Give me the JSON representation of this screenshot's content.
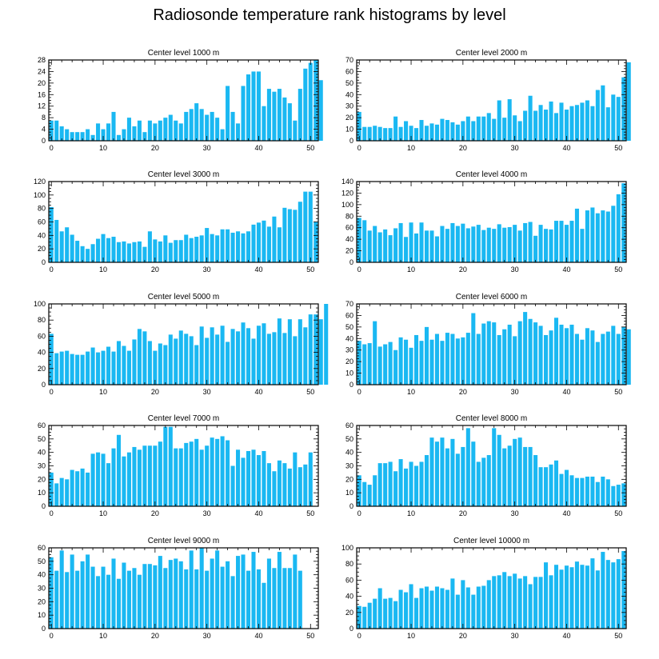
{
  "page_title": "Radiosonde temperature rank histograms by level",
  "bar_color": "#1ab8f2",
  "chart_data": [
    {
      "type": "bar",
      "title": "Center level 1000 m",
      "ylim": [
        0,
        28
      ],
      "yticks": [
        0,
        4,
        8,
        12,
        16,
        20,
        24,
        28
      ],
      "xlim": [
        -0.5,
        51.5
      ],
      "xticks": [
        0,
        10,
        20,
        30,
        40,
        50
      ],
      "values": [
        7,
        7,
        5,
        4,
        3,
        3,
        3,
        4,
        2,
        6,
        4,
        6,
        10,
        2,
        4,
        8,
        5,
        7,
        3,
        7,
        6,
        7,
        8,
        9,
        7,
        6,
        10,
        11,
        13,
        11,
        9,
        10,
        8,
        4,
        19,
        10,
        6,
        19,
        23,
        24,
        24,
        12,
        18,
        17,
        18,
        15,
        13,
        7,
        18,
        25,
        27,
        28,
        21
      ]
    },
    {
      "type": "bar",
      "title": "Center level 2000 m",
      "ylim": [
        0,
        70
      ],
      "yticks": [
        0,
        10,
        20,
        30,
        40,
        50,
        60,
        70
      ],
      "xlim": [
        -0.5,
        51.5
      ],
      "xticks": [
        0,
        10,
        20,
        30,
        40,
        50
      ],
      "values": [
        25,
        12,
        12,
        13,
        12,
        11,
        11,
        21,
        12,
        17,
        13,
        11,
        18,
        13,
        15,
        14,
        19,
        18,
        16,
        14,
        17,
        21,
        17,
        21,
        21,
        24,
        19,
        35,
        20,
        36,
        22,
        17,
        26,
        39,
        26,
        31,
        27,
        34,
        24,
        33,
        27,
        30,
        31,
        33,
        35,
        30,
        44,
        48,
        29,
        40,
        38,
        55,
        68
      ]
    },
    {
      "type": "bar",
      "title": "Center level 3000 m",
      "ylim": [
        0,
        120
      ],
      "yticks": [
        0,
        20,
        40,
        60,
        80,
        100,
        120
      ],
      "xlim": [
        -0.5,
        51.5
      ],
      "xticks": [
        0,
        10,
        20,
        30,
        40,
        50
      ],
      "values": [
        82,
        63,
        46,
        52,
        41,
        32,
        24,
        20,
        27,
        35,
        42,
        36,
        38,
        30,
        31,
        28,
        30,
        31,
        23,
        46,
        34,
        31,
        40,
        29,
        33,
        33,
        41,
        36,
        38,
        40,
        51,
        42,
        40,
        49,
        49,
        44,
        46,
        43,
        46,
        56,
        59,
        62,
        53,
        68,
        52,
        81,
        79,
        78,
        90,
        105,
        105,
        60
      ]
    },
    {
      "type": "bar",
      "title": "Center level 4000 m",
      "ylim": [
        0,
        140
      ],
      "yticks": [
        0,
        20,
        40,
        60,
        80,
        100,
        120,
        140
      ],
      "xlim": [
        -0.5,
        51.5
      ],
      "xticks": [
        0,
        10,
        20,
        30,
        40,
        50
      ],
      "values": [
        77,
        73,
        55,
        63,
        52,
        57,
        47,
        59,
        68,
        44,
        69,
        50,
        69,
        55,
        55,
        45,
        63,
        58,
        68,
        63,
        67,
        59,
        62,
        65,
        56,
        60,
        58,
        66,
        60,
        61,
        65,
        55,
        68,
        70,
        46,
        65,
        58,
        57,
        72,
        72,
        65,
        72,
        93,
        58,
        90,
        95,
        85,
        90,
        88,
        98,
        118,
        137
      ]
    },
    {
      "type": "bar",
      "title": "Center level 5000 m",
      "ylim": [
        0,
        100
      ],
      "yticks": [
        0,
        20,
        40,
        60,
        80,
        100
      ],
      "xlim": [
        -0.5,
        51.5
      ],
      "xticks": [
        0,
        10,
        20,
        30,
        40,
        50
      ],
      "values": [
        63,
        39,
        41,
        42,
        38,
        37,
        37,
        41,
        46,
        40,
        42,
        47,
        41,
        54,
        48,
        42,
        56,
        69,
        66,
        54,
        42,
        51,
        49,
        62,
        57,
        67,
        63,
        60,
        49,
        72,
        58,
        71,
        62,
        73,
        53,
        69,
        66,
        77,
        70,
        57,
        73,
        76,
        63,
        65,
        82,
        64,
        81,
        60,
        81,
        71,
        87,
        87,
        81,
        100
      ]
    },
    {
      "type": "bar",
      "title": "Center level 6000 m",
      "ylim": [
        0,
        70
      ],
      "yticks": [
        0,
        10,
        20,
        30,
        40,
        50,
        60,
        70
      ],
      "xlim": [
        -0.5,
        51.5
      ],
      "xticks": [
        0,
        10,
        20,
        30,
        40,
        50
      ],
      "values": [
        38,
        35,
        36,
        55,
        33,
        35,
        37,
        30,
        41,
        39,
        32,
        43,
        38,
        50,
        39,
        44,
        38,
        45,
        44,
        40,
        41,
        45,
        62,
        44,
        53,
        55,
        54,
        43,
        48,
        52,
        42,
        55,
        63,
        57,
        54,
        51,
        43,
        47,
        58,
        52,
        49,
        52,
        44,
        39,
        49,
        47,
        37,
        44,
        46,
        51,
        44,
        50,
        48
      ]
    },
    {
      "type": "bar",
      "title": "Center level 7000 m",
      "ylim": [
        0,
        60
      ],
      "yticks": [
        0,
        10,
        20,
        30,
        40,
        50,
        60
      ],
      "xlim": [
        -0.5,
        51.5
      ],
      "xticks": [
        0,
        10,
        20,
        30,
        40,
        50
      ],
      "values": [
        25,
        17,
        21,
        20,
        27,
        26,
        28,
        25,
        39,
        40,
        39,
        32,
        43,
        53,
        37,
        40,
        44,
        42,
        45,
        45,
        45,
        48,
        59,
        59,
        43,
        43,
        47,
        48,
        50,
        42,
        45,
        51,
        50,
        52,
        49,
        30,
        42,
        36,
        41,
        42,
        38,
        41,
        32,
        26,
        34,
        32,
        28,
        40,
        29,
        31,
        40
      ]
    },
    {
      "type": "bar",
      "title": "Center level 8000 m",
      "ylim": [
        0,
        60
      ],
      "yticks": [
        0,
        10,
        20,
        30,
        40,
        50,
        60
      ],
      "xlim": [
        -0.5,
        51.5
      ],
      "xticks": [
        0,
        10,
        20,
        30,
        40,
        50
      ],
      "values": [
        23,
        18,
        16,
        23,
        32,
        32,
        33,
        26,
        35,
        28,
        33,
        30,
        33,
        38,
        51,
        48,
        51,
        43,
        50,
        39,
        44,
        58,
        48,
        33,
        36,
        38,
        58,
        53,
        43,
        45,
        50,
        51,
        44,
        44,
        38,
        29,
        29,
        31,
        34,
        24,
        27,
        23,
        21,
        21,
        22,
        22,
        18,
        22,
        20,
        15,
        16,
        17
      ]
    },
    {
      "type": "bar",
      "title": "Center level 9000 m",
      "ylim": [
        0,
        60
      ],
      "yticks": [
        0,
        10,
        20,
        30,
        40,
        50,
        60
      ],
      "xlim": [
        -0.5,
        51.5
      ],
      "xticks": [
        0,
        10,
        20,
        30,
        40,
        50
      ],
      "values": [
        53,
        43,
        58,
        42,
        55,
        43,
        50,
        55,
        46,
        39,
        46,
        40,
        52,
        37,
        49,
        43,
        45,
        40,
        48,
        48,
        47,
        54,
        45,
        51,
        52,
        50,
        44,
        58,
        44,
        60,
        43,
        52,
        58,
        46,
        50,
        39,
        54,
        55,
        43,
        57,
        44,
        34,
        52,
        45,
        57,
        45,
        45,
        55,
        43
      ]
    },
    {
      "type": "bar",
      "title": "Center level 10000 m",
      "ylim": [
        0,
        100
      ],
      "yticks": [
        0,
        20,
        40,
        60,
        80,
        100
      ],
      "xlim": [
        -0.5,
        51.5
      ],
      "xticks": [
        0,
        10,
        20,
        30,
        40,
        50
      ],
      "values": [
        28,
        27,
        32,
        37,
        50,
        37,
        38,
        34,
        48,
        45,
        55,
        38,
        50,
        52,
        47,
        52,
        50,
        48,
        62,
        42,
        60,
        51,
        42,
        52,
        53,
        60,
        65,
        66,
        70,
        65,
        68,
        62,
        65,
        55,
        64,
        64,
        82,
        66,
        79,
        73,
        78,
        76,
        83,
        79,
        78,
        87,
        72,
        95,
        85,
        82,
        86,
        96
      ]
    }
  ]
}
